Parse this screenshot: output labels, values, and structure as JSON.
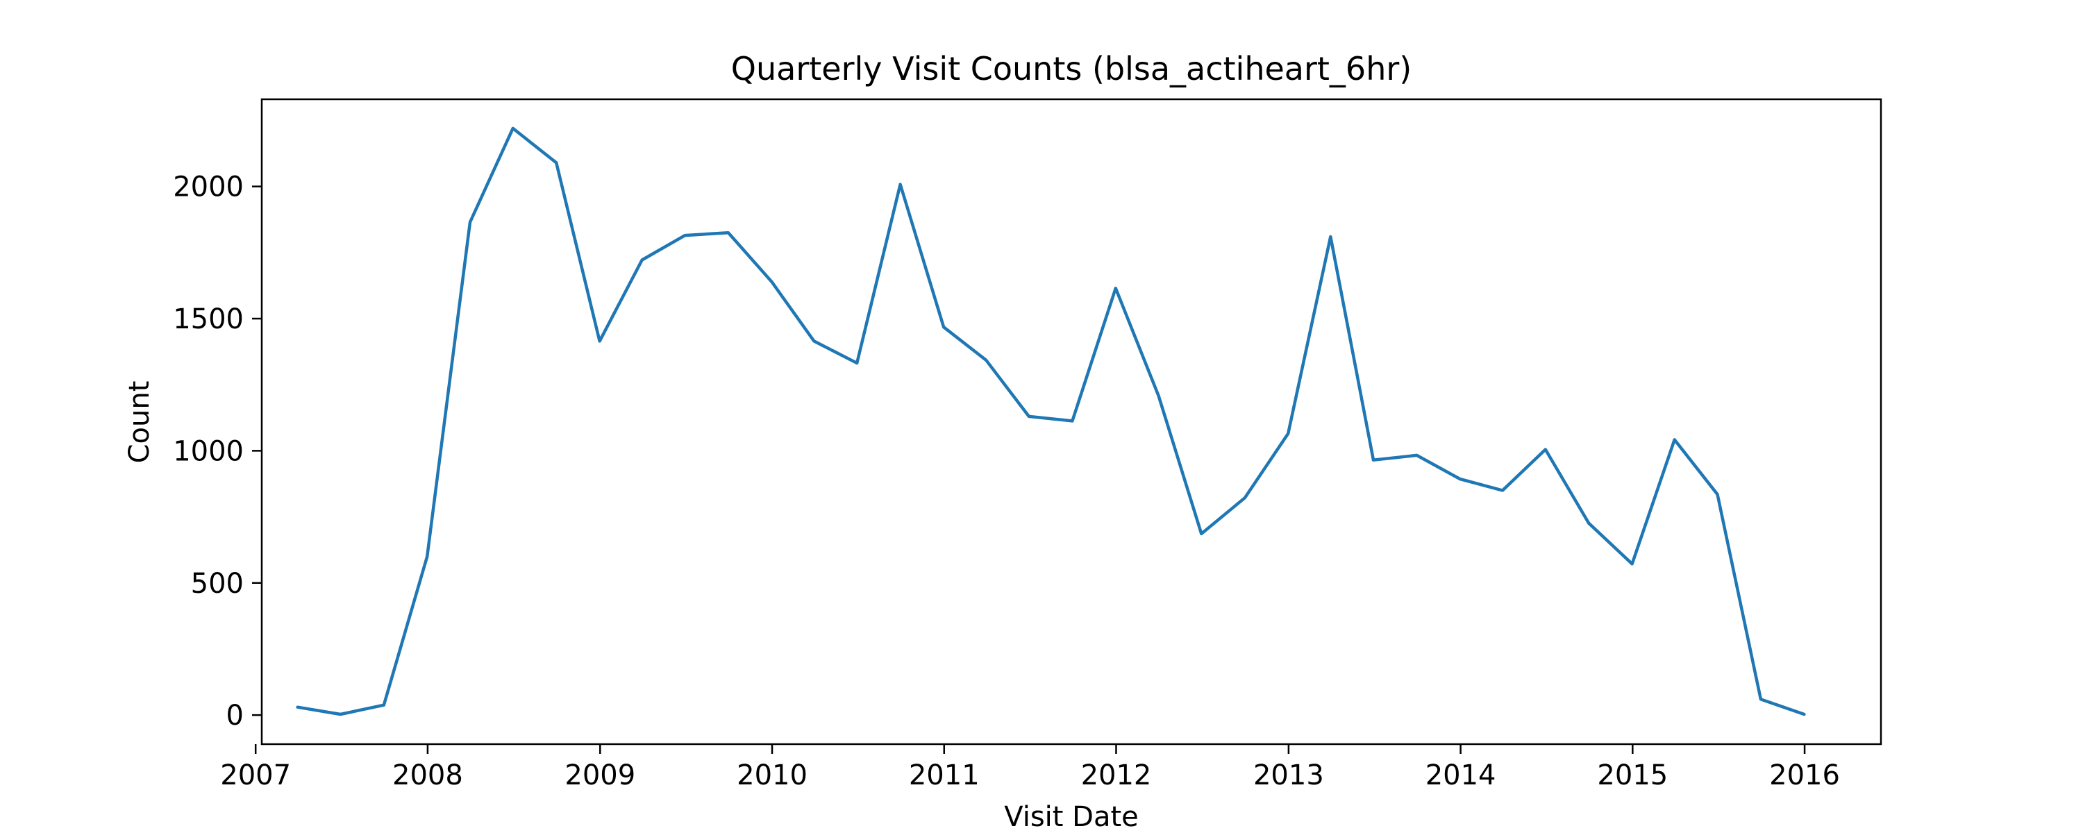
{
  "chart_data": {
    "type": "line",
    "title": "Quarterly Visit Counts (blsa_actiheart_6hr)",
    "xlabel": "Visit Date",
    "ylabel": "Count",
    "x_ticks": [
      "2007",
      "2008",
      "2009",
      "2010",
      "2011",
      "2012",
      "2013",
      "2014",
      "2015",
      "2016"
    ],
    "y_ticks": [
      0,
      500,
      1000,
      1500,
      2000
    ],
    "ylim": [
      -110,
      2330
    ],
    "xlim": [
      "2007-01-14",
      "2016-06-11"
    ],
    "grid": false,
    "line_color": "#1f77b4",
    "series": [
      {
        "x": [
          "2007-03-31",
          "2007-06-30",
          "2007-09-30",
          "2007-12-31",
          "2008-03-31",
          "2008-06-30",
          "2008-09-30",
          "2008-12-31",
          "2009-03-31",
          "2009-06-30",
          "2009-09-30",
          "2009-12-31",
          "2010-03-31",
          "2010-06-30",
          "2010-09-30",
          "2010-12-31",
          "2011-03-31",
          "2011-06-30",
          "2011-09-30",
          "2011-12-31",
          "2012-03-31",
          "2012-06-30",
          "2012-09-30",
          "2012-12-31",
          "2013-03-31",
          "2013-06-30",
          "2013-09-30",
          "2013-12-31",
          "2014-03-31",
          "2014-06-30",
          "2014-09-30",
          "2014-12-31",
          "2015-03-31",
          "2015-06-30",
          "2015-09-30",
          "2015-12-31"
        ],
        "values": [
          30,
          3,
          38,
          600,
          1865,
          2220,
          2090,
          1415,
          1722,
          1815,
          1825,
          1640,
          1415,
          1332,
          2008,
          1468,
          1343,
          1130,
          1113,
          1615,
          1208,
          686,
          822,
          1065,
          1810,
          965,
          983,
          893,
          850,
          1005,
          726,
          572,
          1042,
          835,
          60,
          3
        ]
      }
    ]
  }
}
